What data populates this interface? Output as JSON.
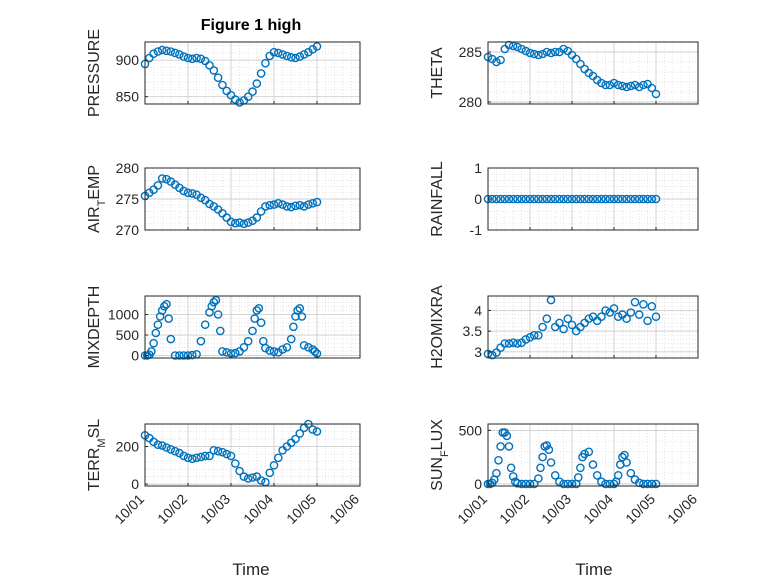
{
  "figure": {
    "title": "Figure 1 high",
    "xlabel": "Time",
    "date_tick_labels": [
      "10/01",
      "10/02",
      "10/03",
      "10/04",
      "10/05",
      "10/06"
    ],
    "marker_color": "#0072BD",
    "grid_color": "#d9d9d9"
  },
  "chart_data": [
    {
      "id": "pressure",
      "type": "scatter",
      "ylabel": "PRESSURE",
      "ylim": [
        840,
        925
      ],
      "yticks": [
        850,
        900
      ],
      "x": [
        0.0,
        0.1,
        0.2,
        0.3,
        0.4,
        0.5,
        0.6,
        0.7,
        0.8,
        0.9,
        1.0,
        1.1,
        1.2,
        1.3,
        1.4,
        1.5,
        1.6,
        1.7,
        1.8,
        1.9,
        2.0,
        2.1,
        2.2,
        2.3,
        2.4,
        2.5,
        2.6,
        2.7,
        2.8,
        2.9,
        3.0,
        3.1,
        3.2,
        3.3,
        3.4,
        3.5,
        3.6,
        3.7,
        3.8,
        3.9,
        4.0
      ],
      "y": [
        895,
        903,
        909,
        912,
        914,
        913,
        912,
        910,
        908,
        905,
        903,
        902,
        903,
        902,
        899,
        893,
        886,
        876,
        866,
        858,
        852,
        846,
        842,
        845,
        850,
        857,
        868,
        882,
        896,
        906,
        911,
        910,
        908,
        906,
        904,
        903,
        905,
        908,
        911,
        915,
        919
      ]
    },
    {
      "id": "theta",
      "type": "scatter",
      "ylabel": "THETA",
      "ylim": [
        279.8,
        286
      ],
      "yticks": [
        280,
        285
      ],
      "x": [
        0.0,
        0.1,
        0.2,
        0.3,
        0.4,
        0.5,
        0.6,
        0.7,
        0.8,
        0.9,
        1.0,
        1.1,
        1.2,
        1.3,
        1.4,
        1.5,
        1.6,
        1.7,
        1.8,
        1.9,
        2.0,
        2.1,
        2.2,
        2.3,
        2.4,
        2.5,
        2.6,
        2.7,
        2.8,
        2.9,
        3.0,
        3.1,
        3.2,
        3.3,
        3.4,
        3.5,
        3.6,
        3.7,
        3.8,
        3.9,
        4.0
      ],
      "y": [
        284.5,
        284.3,
        284.0,
        284.2,
        285.3,
        285.7,
        285.6,
        285.5,
        285.3,
        285.1,
        284.9,
        284.8,
        284.7,
        284.8,
        285.0,
        284.9,
        285.0,
        285.0,
        285.3,
        285.1,
        284.7,
        284.3,
        283.8,
        283.3,
        282.9,
        282.6,
        282.2,
        281.9,
        281.7,
        281.7,
        281.9,
        281.7,
        281.6,
        281.5,
        281.6,
        281.7,
        281.5,
        281.7,
        281.8,
        281.4,
        280.8
      ]
    },
    {
      "id": "air_temp",
      "type": "scatter",
      "ylabel": "AIR_TEMP",
      "ylim": [
        270,
        280
      ],
      "yticks": [
        270,
        275,
        280
      ],
      "x": [
        0.0,
        0.1,
        0.2,
        0.3,
        0.4,
        0.5,
        0.6,
        0.7,
        0.8,
        0.9,
        1.0,
        1.1,
        1.2,
        1.3,
        1.4,
        1.5,
        1.6,
        1.7,
        1.8,
        1.9,
        2.0,
        2.1,
        2.2,
        2.3,
        2.4,
        2.5,
        2.6,
        2.7,
        2.8,
        2.9,
        3.0,
        3.1,
        3.2,
        3.3,
        3.4,
        3.5,
        3.6,
        3.7,
        3.8,
        3.9,
        4.0
      ],
      "y": [
        275.5,
        276.0,
        276.5,
        277.2,
        278.3,
        278.2,
        277.8,
        277.3,
        276.8,
        276.3,
        276.0,
        275.9,
        275.7,
        275.2,
        274.8,
        274.2,
        273.8,
        273.3,
        272.7,
        272.0,
        271.3,
        271.1,
        271.2,
        271.0,
        271.2,
        271.5,
        272.0,
        273.0,
        273.8,
        274.0,
        274.1,
        274.3,
        274.1,
        273.8,
        273.7,
        273.9,
        274.0,
        273.8,
        274.1,
        274.3,
        274.5
      ]
    },
    {
      "id": "rainfall",
      "type": "scatter",
      "ylabel": "RAINFALL",
      "ylim": [
        -1,
        1
      ],
      "yticks": [
        -1,
        0,
        1
      ],
      "x": [
        0.0,
        0.1,
        0.2,
        0.3,
        0.4,
        0.5,
        0.6,
        0.7,
        0.8,
        0.9,
        1.0,
        1.1,
        1.2,
        1.3,
        1.4,
        1.5,
        1.6,
        1.7,
        1.8,
        1.9,
        2.0,
        2.1,
        2.2,
        2.3,
        2.4,
        2.5,
        2.6,
        2.7,
        2.8,
        2.9,
        3.0,
        3.1,
        3.2,
        3.3,
        3.4,
        3.5,
        3.6,
        3.7,
        3.8,
        3.9,
        4.0
      ],
      "y": [
        0,
        0,
        0,
        0,
        0,
        0,
        0,
        0,
        0,
        0,
        0,
        0,
        0,
        0,
        0,
        0,
        0,
        0,
        0,
        0,
        0,
        0,
        0,
        0,
        0,
        0,
        0,
        0,
        0,
        0,
        0,
        0,
        0,
        0,
        0,
        0,
        0,
        0,
        0,
        0,
        0
      ]
    },
    {
      "id": "mixdepth",
      "type": "scatter",
      "ylabel": "MIXDEPTH",
      "ylim": [
        -60,
        1450
      ],
      "yticks": [
        0,
        500,
        1000
      ],
      "x": [
        0.0,
        0.05,
        0.1,
        0.15,
        0.2,
        0.25,
        0.3,
        0.35,
        0.4,
        0.45,
        0.5,
        0.55,
        0.6,
        0.7,
        0.8,
        0.9,
        1.0,
        1.1,
        1.2,
        1.3,
        1.4,
        1.5,
        1.55,
        1.6,
        1.65,
        1.7,
        1.75,
        1.8,
        1.9,
        2.0,
        2.1,
        2.2,
        2.3,
        2.4,
        2.5,
        2.55,
        2.6,
        2.65,
        2.7,
        2.75,
        2.8,
        2.9,
        3.0,
        3.1,
        3.2,
        3.3,
        3.4,
        3.45,
        3.5,
        3.55,
        3.6,
        3.65,
        3.7,
        3.8,
        3.9,
        3.95,
        4.0
      ],
      "y": [
        0,
        0,
        20,
        100,
        300,
        550,
        750,
        950,
        1100,
        1200,
        1250,
        900,
        400,
        0,
        0,
        0,
        0,
        10,
        30,
        350,
        750,
        1050,
        1200,
        1300,
        1350,
        1000,
        600,
        100,
        80,
        50,
        60,
        100,
        200,
        350,
        600,
        900,
        1100,
        1150,
        800,
        350,
        180,
        120,
        100,
        80,
        150,
        200,
        400,
        700,
        950,
        1100,
        1150,
        950,
        250,
        200,
        150,
        100,
        50
      ]
    },
    {
      "id": "h2omixra",
      "type": "scatter",
      "ylabel": "H2OMIXRA",
      "ylim": [
        2.85,
        4.35
      ],
      "yticks": [
        3,
        3.5,
        4
      ],
      "x": [
        0.0,
        0.1,
        0.2,
        0.3,
        0.4,
        0.5,
        0.6,
        0.7,
        0.8,
        0.9,
        1.0,
        1.1,
        1.2,
        1.3,
        1.4,
        1.5,
        1.6,
        1.7,
        1.8,
        1.9,
        2.0,
        2.1,
        2.2,
        2.3,
        2.4,
        2.5,
        2.6,
        2.7,
        2.8,
        2.9,
        3.0,
        3.1,
        3.2,
        3.3,
        3.4,
        3.5,
        3.6,
        3.7,
        3.8,
        3.9,
        4.0
      ],
      "y": [
        2.95,
        2.92,
        2.98,
        3.1,
        3.2,
        3.2,
        3.22,
        3.2,
        3.22,
        3.3,
        3.35,
        3.4,
        3.4,
        3.6,
        3.8,
        4.25,
        3.6,
        3.7,
        3.55,
        3.8,
        3.65,
        3.5,
        3.6,
        3.7,
        3.8,
        3.85,
        3.75,
        3.85,
        4.0,
        3.95,
        4.05,
        3.85,
        3.9,
        3.8,
        3.95,
        4.2,
        3.9,
        4.15,
        3.75,
        4.1,
        3.85
      ]
    },
    {
      "id": "terr_msl",
      "type": "scatter",
      "ylabel": "TERR_MSL",
      "ylim": [
        -10,
        320
      ],
      "yticks": [
        0,
        200
      ],
      "x": [
        0.0,
        0.1,
        0.2,
        0.3,
        0.4,
        0.5,
        0.6,
        0.7,
        0.8,
        0.9,
        1.0,
        1.1,
        1.2,
        1.3,
        1.4,
        1.5,
        1.6,
        1.7,
        1.8,
        1.9,
        2.0,
        2.1,
        2.2,
        2.3,
        2.4,
        2.5,
        2.6,
        2.7,
        2.8,
        2.9,
        3.0,
        3.1,
        3.2,
        3.3,
        3.4,
        3.5,
        3.6,
        3.7,
        3.8,
        3.9,
        4.0
      ],
      "y": [
        260,
        245,
        225,
        210,
        205,
        195,
        185,
        175,
        165,
        150,
        140,
        135,
        140,
        145,
        150,
        150,
        180,
        175,
        170,
        160,
        150,
        110,
        70,
        40,
        30,
        35,
        40,
        20,
        10,
        60,
        100,
        140,
        180,
        200,
        220,
        240,
        270,
        300,
        320,
        290,
        280
      ]
    },
    {
      "id": "sun_flux",
      "type": "scatter",
      "ylabel": "SUN_FLUX",
      "ylim": [
        -20,
        560
      ],
      "yticks": [
        0,
        500
      ],
      "x": [
        0.0,
        0.05,
        0.1,
        0.15,
        0.2,
        0.25,
        0.3,
        0.35,
        0.4,
        0.45,
        0.5,
        0.55,
        0.6,
        0.65,
        0.7,
        0.8,
        0.9,
        1.0,
        1.1,
        1.2,
        1.25,
        1.3,
        1.35,
        1.4,
        1.45,
        1.5,
        1.6,
        1.7,
        1.8,
        1.9,
        2.0,
        2.1,
        2.15,
        2.2,
        2.25,
        2.3,
        2.4,
        2.5,
        2.6,
        2.7,
        2.8,
        2.9,
        3.0,
        3.05,
        3.1,
        3.15,
        3.2,
        3.25,
        3.3,
        3.4,
        3.5,
        3.6,
        3.7,
        3.8,
        3.9,
        4.0
      ],
      "y": [
        0,
        0,
        10,
        40,
        100,
        220,
        350,
        480,
        480,
        450,
        350,
        150,
        70,
        20,
        5,
        0,
        0,
        0,
        0,
        50,
        150,
        250,
        350,
        360,
        320,
        200,
        80,
        20,
        0,
        0,
        0,
        0,
        60,
        150,
        250,
        280,
        300,
        180,
        80,
        20,
        0,
        0,
        0,
        20,
        80,
        180,
        250,
        270,
        200,
        100,
        40,
        10,
        0,
        0,
        0,
        0
      ]
    }
  ]
}
